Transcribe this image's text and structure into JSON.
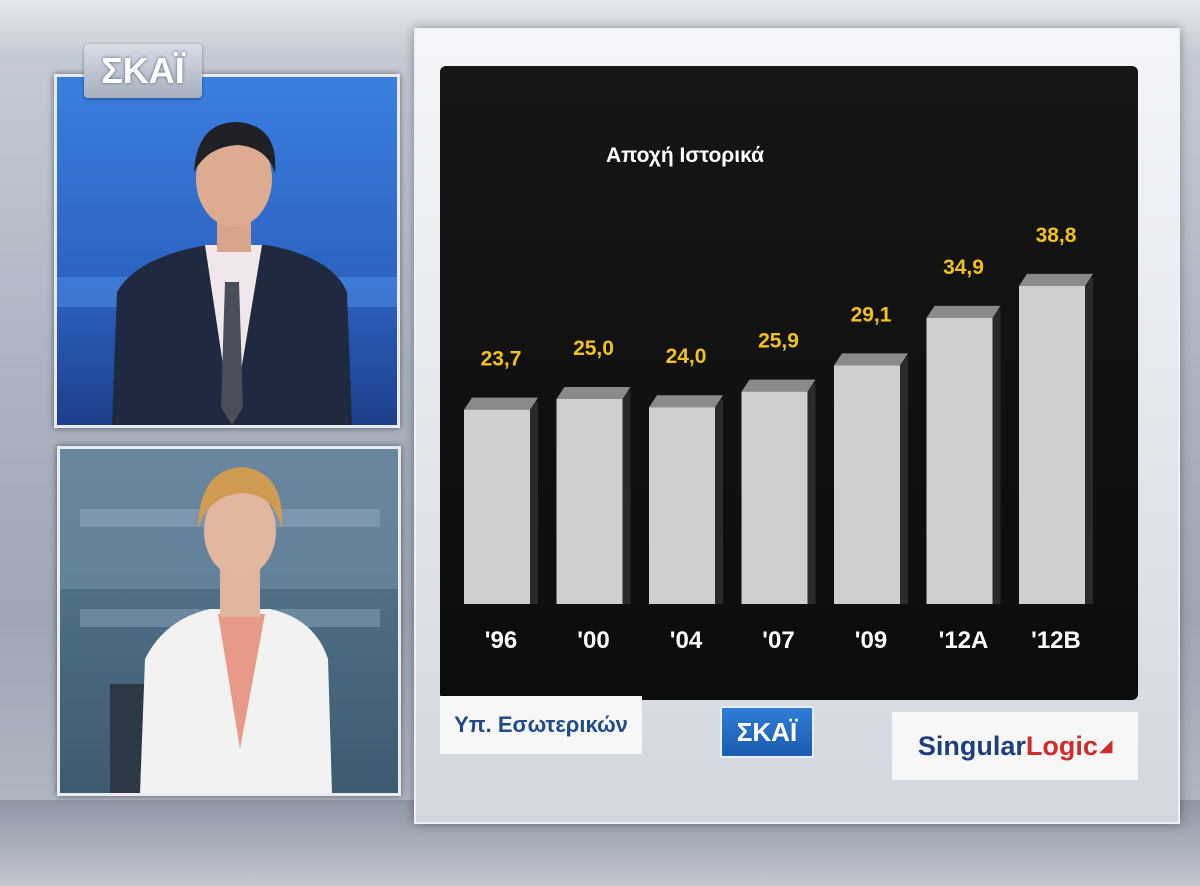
{
  "broadcast": {
    "logo_text": "ΣΚΑΪ",
    "source_label": "Υπ. Εσωτερικών",
    "channel_chip": "ΣΚΑΪ",
    "sponsor_part1": "Singular",
    "sponsor_part2": "Logic",
    "sponsor_mark_icon": "arrow-mark-icon"
  },
  "colors": {
    "value_label": "#f2c21b",
    "bar_front": "#cfcfcf",
    "bar_top": "#8a8a8a",
    "bar_side": "#2a2a2a",
    "category_label": "#ffffff",
    "chart_background": "#121212"
  },
  "chart_data": {
    "type": "bar",
    "title": "Αποχή Ιστορικά",
    "categories": [
      "'96",
      "'00",
      "'04",
      "'07",
      "'09",
      "'12A",
      "'12B"
    ],
    "values": [
      23.7,
      25.0,
      24.0,
      25.9,
      29.1,
      34.9,
      38.8
    ],
    "value_labels": [
      "23,7",
      "25,0",
      "24,0",
      "25,9",
      "29,1",
      "34,9",
      "38,8"
    ],
    "xlabel": "",
    "ylabel": "",
    "ylim": [
      0,
      40
    ],
    "grid": false,
    "legend": "none"
  }
}
